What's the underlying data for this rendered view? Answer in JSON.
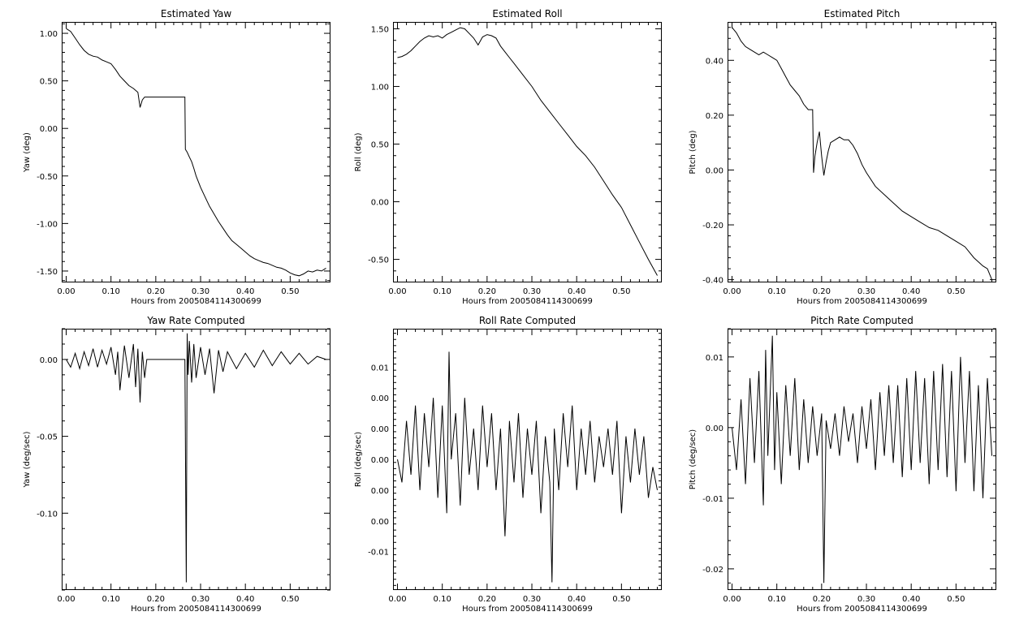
{
  "chart_data": [
    {
      "type": "line",
      "title": "Estimated Yaw",
      "xlabel": "Hours from 2005084114300699",
      "ylabel": "Yaw (deg)",
      "xlim": [
        -0.01,
        0.59
      ],
      "ylim": [
        -1.62,
        1.12
      ],
      "xticks": [
        0.0,
        0.1,
        0.2,
        0.3,
        0.4,
        0.5
      ],
      "xtick_labels": [
        "0.00",
        "0.10",
        "0.20",
        "0.30",
        "0.40",
        "0.50"
      ],
      "yticks": [
        1.0,
        0.5,
        0.0,
        -0.5,
        -1.0,
        -1.5
      ],
      "ytick_labels": [
        "1.00",
        "0.50",
        "0.00",
        "-0.50",
        "-1.00",
        "-1.50"
      ],
      "grid": false,
      "series": [
        {
          "x": [
            0.0,
            0.01,
            0.02,
            0.03,
            0.04,
            0.05,
            0.06,
            0.07,
            0.08,
            0.09,
            0.1,
            0.11,
            0.12,
            0.13,
            0.14,
            0.15,
            0.16,
            0.165,
            0.17,
            0.175,
            0.18,
            0.2,
            0.22,
            0.24,
            0.265,
            0.266,
            0.27,
            0.275,
            0.28,
            0.285,
            0.29,
            0.3,
            0.31,
            0.32,
            0.33,
            0.34,
            0.35,
            0.36,
            0.37,
            0.38,
            0.39,
            0.4,
            0.41,
            0.42,
            0.43,
            0.44,
            0.45,
            0.46,
            0.47,
            0.48,
            0.49,
            0.5,
            0.51,
            0.52,
            0.53,
            0.54,
            0.55,
            0.56,
            0.57,
            0.58
          ],
          "values": [
            1.05,
            1.02,
            0.95,
            0.88,
            0.82,
            0.78,
            0.76,
            0.75,
            0.72,
            0.7,
            0.68,
            0.62,
            0.55,
            0.5,
            0.45,
            0.42,
            0.38,
            0.22,
            0.3,
            0.33,
            0.33,
            0.33,
            0.33,
            0.33,
            0.33,
            -0.22,
            -0.25,
            -0.3,
            -0.35,
            -0.42,
            -0.5,
            -0.62,
            -0.72,
            -0.82,
            -0.9,
            -0.98,
            -1.05,
            -1.12,
            -1.18,
            -1.22,
            -1.26,
            -1.3,
            -1.34,
            -1.37,
            -1.39,
            -1.41,
            -1.42,
            -1.44,
            -1.46,
            -1.47,
            -1.49,
            -1.52,
            -1.54,
            -1.55,
            -1.53,
            -1.5,
            -1.51,
            -1.49,
            -1.5,
            -1.47
          ]
        }
      ]
    },
    {
      "type": "line",
      "title": "Estimated Roll",
      "xlabel": "Hours from 2005084114300699",
      "ylabel": "Roll (deg)",
      "xlim": [
        -0.01,
        0.59
      ],
      "ylim": [
        -0.7,
        1.56
      ],
      "xticks": [
        0.0,
        0.1,
        0.2,
        0.3,
        0.4,
        0.5
      ],
      "xtick_labels": [
        "0.00",
        "0.10",
        "0.20",
        "0.30",
        "0.40",
        "0.50"
      ],
      "yticks": [
        1.5,
        1.0,
        0.5,
        0.0,
        -0.5
      ],
      "ytick_labels": [
        "1.50",
        "1.00",
        "0.50",
        "0.00",
        "-0.50"
      ],
      "grid": false,
      "series": [
        {
          "x": [
            0.0,
            0.01,
            0.02,
            0.03,
            0.04,
            0.05,
            0.06,
            0.07,
            0.08,
            0.09,
            0.1,
            0.11,
            0.12,
            0.13,
            0.14,
            0.15,
            0.16,
            0.17,
            0.18,
            0.19,
            0.2,
            0.21,
            0.22,
            0.23,
            0.24,
            0.25,
            0.26,
            0.27,
            0.28,
            0.3,
            0.32,
            0.34,
            0.36,
            0.38,
            0.4,
            0.42,
            0.44,
            0.46,
            0.48,
            0.5,
            0.52,
            0.54,
            0.56,
            0.58
          ],
          "values": [
            1.25,
            1.26,
            1.28,
            1.31,
            1.35,
            1.39,
            1.42,
            1.44,
            1.43,
            1.44,
            1.42,
            1.45,
            1.47,
            1.49,
            1.51,
            1.5,
            1.46,
            1.42,
            1.36,
            1.43,
            1.45,
            1.44,
            1.42,
            1.35,
            1.3,
            1.25,
            1.2,
            1.15,
            1.1,
            1.0,
            0.88,
            0.78,
            0.68,
            0.58,
            0.48,
            0.4,
            0.3,
            0.18,
            0.06,
            -0.05,
            -0.2,
            -0.35,
            -0.5,
            -0.64
          ]
        }
      ]
    },
    {
      "type": "line",
      "title": "Estimated Pitch",
      "xlabel": "Hours from 2005084114300699",
      "ylabel": "Pitch (deg)",
      "xlim": [
        -0.01,
        0.59
      ],
      "ylim": [
        -0.41,
        0.54
      ],
      "xticks": [
        0.0,
        0.1,
        0.2,
        0.3,
        0.4,
        0.5
      ],
      "xtick_labels": [
        "0.00",
        "0.10",
        "0.20",
        "0.30",
        "0.40",
        "0.50"
      ],
      "yticks": [
        0.4,
        0.2,
        0.0,
        -0.2,
        -0.4
      ],
      "ytick_labels": [
        "0.40",
        "0.20",
        "0.00",
        "-0.20",
        "-0.40"
      ],
      "grid": false,
      "series": [
        {
          "x": [
            0.0,
            0.01,
            0.02,
            0.03,
            0.04,
            0.05,
            0.06,
            0.07,
            0.08,
            0.09,
            0.1,
            0.11,
            0.12,
            0.13,
            0.14,
            0.15,
            0.16,
            0.17,
            0.18,
            0.182,
            0.185,
            0.19,
            0.195,
            0.2,
            0.205,
            0.21,
            0.215,
            0.22,
            0.23,
            0.24,
            0.25,
            0.26,
            0.27,
            0.28,
            0.29,
            0.3,
            0.32,
            0.34,
            0.36,
            0.38,
            0.4,
            0.42,
            0.44,
            0.46,
            0.48,
            0.5,
            0.52,
            0.54,
            0.56,
            0.57,
            0.58
          ],
          "values": [
            0.52,
            0.5,
            0.47,
            0.45,
            0.44,
            0.43,
            0.42,
            0.43,
            0.42,
            0.41,
            0.4,
            0.37,
            0.34,
            0.31,
            0.29,
            0.27,
            0.24,
            0.22,
            0.22,
            -0.01,
            0.05,
            0.1,
            0.14,
            0.05,
            -0.02,
            0.03,
            0.07,
            0.1,
            0.11,
            0.12,
            0.11,
            0.11,
            0.09,
            0.06,
            0.02,
            -0.01,
            -0.06,
            -0.09,
            -0.12,
            -0.15,
            -0.17,
            -0.19,
            -0.21,
            -0.22,
            -0.24,
            -0.26,
            -0.28,
            -0.32,
            -0.35,
            -0.36,
            -0.4
          ]
        }
      ]
    },
    {
      "type": "line",
      "title": "Yaw Rate Computed",
      "xlabel": "Hours from 2005084114300699",
      "ylabel": "Yaw (deg/sec)",
      "xlim": [
        -0.01,
        0.59
      ],
      "ylim": [
        -0.15,
        0.02
      ],
      "xticks": [
        0.0,
        0.1,
        0.2,
        0.3,
        0.4,
        0.5
      ],
      "xtick_labels": [
        "0.00",
        "0.10",
        "0.20",
        "0.30",
        "0.40",
        "0.50"
      ],
      "yticks": [
        0.0,
        -0.05,
        -0.1
      ],
      "ytick_labels": [
        "0.00",
        "-0.05",
        "-0.10"
      ],
      "grid": false,
      "series": [
        {
          "x": [
            0.0,
            0.01,
            0.02,
            0.03,
            0.04,
            0.05,
            0.06,
            0.07,
            0.08,
            0.09,
            0.1,
            0.11,
            0.115,
            0.12,
            0.13,
            0.14,
            0.15,
            0.155,
            0.16,
            0.165,
            0.17,
            0.175,
            0.18,
            0.22,
            0.265,
            0.268,
            0.27,
            0.272,
            0.275,
            0.28,
            0.285,
            0.29,
            0.3,
            0.31,
            0.32,
            0.33,
            0.34,
            0.35,
            0.36,
            0.38,
            0.4,
            0.42,
            0.44,
            0.46,
            0.48,
            0.5,
            0.52,
            0.54,
            0.56,
            0.58
          ],
          "values": [
            0.0,
            -0.005,
            0.004,
            -0.006,
            0.005,
            -0.004,
            0.007,
            -0.005,
            0.006,
            -0.003,
            0.008,
            -0.01,
            0.005,
            -0.02,
            0.009,
            -0.012,
            0.01,
            -0.018,
            0.007,
            -0.028,
            0.005,
            -0.012,
            0.0,
            0.0,
            0.0,
            -0.145,
            0.017,
            -0.01,
            0.012,
            -0.015,
            0.01,
            -0.012,
            0.008,
            -0.01,
            0.007,
            -0.022,
            0.006,
            -0.008,
            0.005,
            -0.006,
            0.004,
            -0.005,
            0.006,
            -0.004,
            0.005,
            -0.003,
            0.004,
            -0.003,
            0.002,
            0.0
          ]
        }
      ]
    },
    {
      "type": "line",
      "title": "Roll Rate Computed",
      "xlabel": "Hours from 2005084114300699",
      "ylabel": "Roll (deg/sec)",
      "xlim": [
        -0.01,
        0.59
      ],
      "ylim": [
        -0.019,
        0.015
      ],
      "xticks": [
        0.0,
        0.1,
        0.2,
        0.3,
        0.4,
        0.5
      ],
      "xtick_labels": [
        "0.00",
        "0.10",
        "0.20",
        "0.30",
        "0.40",
        "0.50"
      ],
      "yticks": [
        0.01,
        0.006,
        0.002,
        -0.002,
        -0.006,
        -0.01,
        -0.014
      ],
      "ytick_labels": [
        "0.01",
        "0.00",
        "0.00",
        "0.00",
        "0.00",
        "0.00",
        "-0.01"
      ],
      "grid": false,
      "series": [
        {
          "x": [
            0.0,
            0.01,
            0.02,
            0.03,
            0.04,
            0.05,
            0.06,
            0.07,
            0.08,
            0.09,
            0.1,
            0.11,
            0.115,
            0.12,
            0.13,
            0.14,
            0.15,
            0.16,
            0.17,
            0.18,
            0.19,
            0.2,
            0.21,
            0.22,
            0.23,
            0.24,
            0.25,
            0.26,
            0.27,
            0.28,
            0.29,
            0.3,
            0.31,
            0.32,
            0.33,
            0.34,
            0.345,
            0.35,
            0.36,
            0.37,
            0.38,
            0.39,
            0.4,
            0.41,
            0.42,
            0.43,
            0.44,
            0.45,
            0.46,
            0.47,
            0.48,
            0.49,
            0.5,
            0.51,
            0.52,
            0.53,
            0.54,
            0.55,
            0.56,
            0.57,
            0.58
          ],
          "values": [
            -0.002,
            -0.005,
            0.003,
            -0.004,
            0.005,
            -0.006,
            0.004,
            -0.003,
            0.006,
            -0.007,
            0.005,
            -0.009,
            0.012,
            -0.002,
            0.004,
            -0.008,
            0.006,
            -0.004,
            0.002,
            -0.006,
            0.005,
            -0.003,
            0.004,
            -0.006,
            0.002,
            -0.012,
            0.003,
            -0.005,
            0.004,
            -0.007,
            0.002,
            -0.004,
            0.003,
            -0.009,
            0.001,
            -0.005,
            -0.018,
            0.002,
            -0.006,
            0.004,
            -0.003,
            0.005,
            -0.006,
            0.002,
            -0.004,
            0.003,
            -0.005,
            0.001,
            -0.003,
            0.002,
            -0.004,
            0.003,
            -0.009,
            0.001,
            -0.005,
            0.002,
            -0.004,
            0.001,
            -0.007,
            -0.003,
            -0.006
          ]
        }
      ]
    },
    {
      "type": "line",
      "title": "Pitch Rate Computed",
      "xlabel": "Hours from 2005084114300699",
      "ylabel": "Pitch (deg/sec)",
      "xlim": [
        -0.01,
        0.59
      ],
      "ylim": [
        -0.023,
        0.014
      ],
      "xticks": [
        0.0,
        0.1,
        0.2,
        0.3,
        0.4,
        0.5
      ],
      "xtick_labels": [
        "0.00",
        "0.10",
        "0.20",
        "0.30",
        "0.40",
        "0.50"
      ],
      "yticks": [
        0.01,
        0.0,
        -0.01,
        -0.02
      ],
      "ytick_labels": [
        "0.01",
        "0.00",
        "-0.01",
        "-0.02"
      ],
      "grid": false,
      "series": [
        {
          "x": [
            0.0,
            0.01,
            0.02,
            0.03,
            0.04,
            0.05,
            0.06,
            0.07,
            0.075,
            0.08,
            0.09,
            0.095,
            0.1,
            0.11,
            0.12,
            0.13,
            0.14,
            0.15,
            0.16,
            0.17,
            0.18,
            0.19,
            0.2,
            0.205,
            0.21,
            0.22,
            0.23,
            0.24,
            0.25,
            0.26,
            0.27,
            0.28,
            0.29,
            0.3,
            0.31,
            0.32,
            0.33,
            0.34,
            0.35,
            0.36,
            0.37,
            0.38,
            0.39,
            0.4,
            0.41,
            0.42,
            0.43,
            0.44,
            0.45,
            0.46,
            0.47,
            0.48,
            0.49,
            0.5,
            0.51,
            0.52,
            0.53,
            0.54,
            0.55,
            0.56,
            0.57,
            0.58
          ],
          "values": [
            0.0,
            -0.006,
            0.004,
            -0.008,
            0.007,
            -0.005,
            0.008,
            -0.011,
            0.011,
            -0.004,
            0.013,
            -0.006,
            0.005,
            -0.008,
            0.006,
            -0.004,
            0.007,
            -0.006,
            0.004,
            -0.005,
            0.003,
            -0.004,
            0.002,
            -0.022,
            0.001,
            -0.003,
            0.002,
            -0.004,
            0.003,
            -0.002,
            0.002,
            -0.005,
            0.003,
            -0.003,
            0.004,
            -0.006,
            0.005,
            -0.004,
            0.006,
            -0.005,
            0.006,
            -0.007,
            0.007,
            -0.006,
            0.008,
            -0.005,
            0.007,
            -0.008,
            0.008,
            -0.006,
            0.009,
            -0.007,
            0.008,
            -0.009,
            0.01,
            -0.005,
            0.008,
            -0.009,
            0.006,
            -0.01,
            0.007,
            -0.004
          ]
        }
      ]
    }
  ]
}
